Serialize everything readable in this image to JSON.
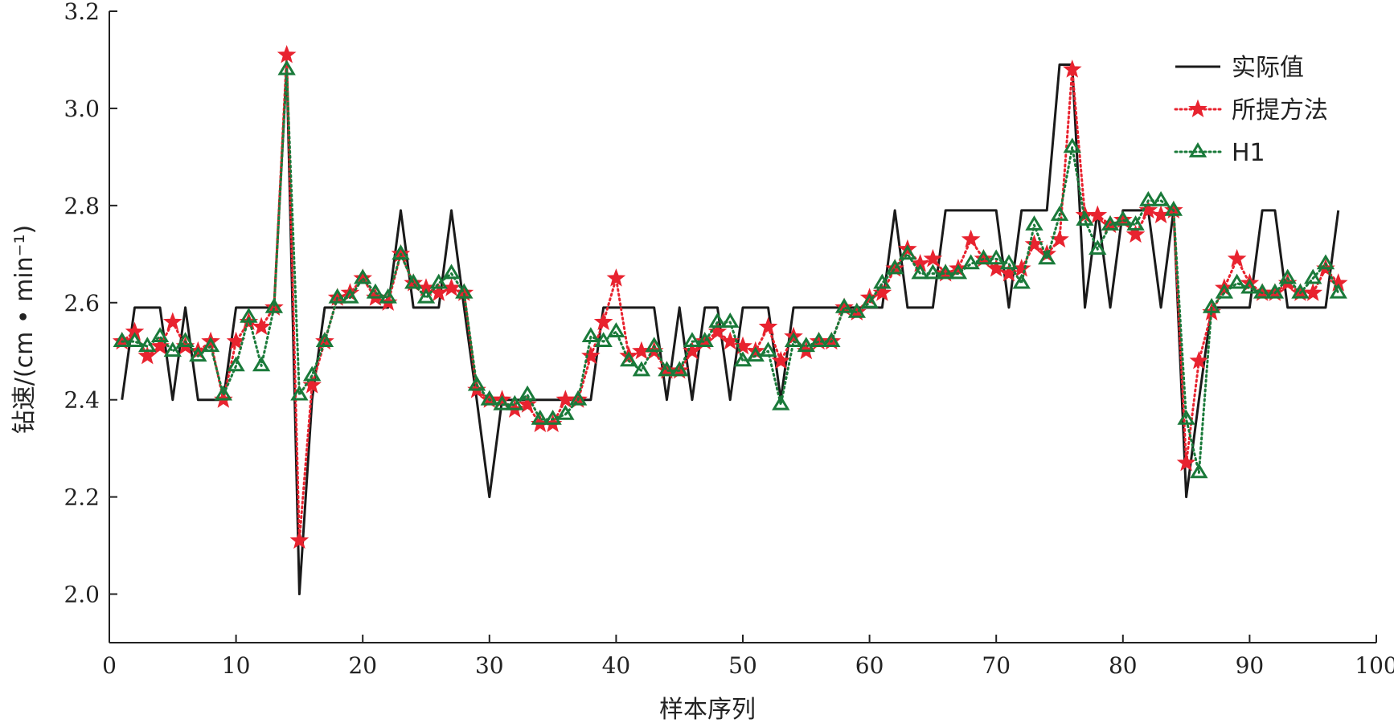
{
  "chart_data": {
    "type": "line",
    "xlabel": "样本序列",
    "ylabel": "钻速/(cm • min⁻¹)",
    "xlim": [
      0,
      100
    ],
    "ylim": [
      1.9,
      3.2
    ],
    "x_ticks": [
      "0",
      "10",
      "20",
      "30",
      "40",
      "50",
      "60",
      "70",
      "80",
      "90",
      "100"
    ],
    "y_ticks": [
      "2.0",
      "2.2",
      "2.4",
      "2.6",
      "2.8",
      "3.0",
      "3.2"
    ],
    "legend_position": "top-right",
    "series": [
      {
        "name": "实际值",
        "color": "#1a1a1a",
        "style": "solid",
        "marker": "none",
        "x": [
          1,
          2,
          3,
          4,
          5,
          6,
          7,
          8,
          9,
          10,
          11,
          12,
          13,
          14,
          15,
          16,
          17,
          18,
          19,
          20,
          21,
          22,
          23,
          24,
          25,
          26,
          27,
          28,
          29,
          30,
          31,
          32,
          33,
          34,
          35,
          36,
          37,
          38,
          39,
          40,
          41,
          42,
          43,
          44,
          45,
          46,
          47,
          48,
          49,
          50,
          51,
          52,
          53,
          54,
          55,
          56,
          57,
          58,
          59,
          60,
          61,
          62,
          63,
          64,
          65,
          66,
          67,
          68,
          69,
          70,
          71,
          72,
          73,
          74,
          75,
          76,
          77,
          78,
          79,
          80,
          81,
          82,
          83,
          84,
          85,
          86,
          87,
          88,
          89,
          90,
          91,
          92,
          93,
          94,
          95,
          96,
          97
        ],
        "values": [
          2.4,
          2.59,
          2.59,
          2.59,
          2.4,
          2.59,
          2.4,
          2.4,
          2.4,
          2.59,
          2.59,
          2.59,
          2.59,
          3.09,
          2.0,
          2.4,
          2.59,
          2.59,
          2.59,
          2.59,
          2.59,
          2.59,
          2.79,
          2.59,
          2.59,
          2.59,
          2.79,
          2.59,
          2.4,
          2.2,
          2.4,
          2.4,
          2.4,
          2.4,
          2.4,
          2.4,
          2.4,
          2.4,
          2.59,
          2.59,
          2.59,
          2.59,
          2.59,
          2.4,
          2.59,
          2.4,
          2.59,
          2.59,
          2.4,
          2.59,
          2.59,
          2.59,
          2.4,
          2.59,
          2.59,
          2.59,
          2.59,
          2.59,
          2.59,
          2.59,
          2.59,
          2.79,
          2.59,
          2.59,
          2.59,
          2.79,
          2.79,
          2.79,
          2.79,
          2.79,
          2.59,
          2.79,
          2.79,
          2.79,
          3.09,
          3.09,
          2.59,
          2.79,
          2.59,
          2.79,
          2.79,
          2.79,
          2.59,
          2.79,
          2.2,
          2.4,
          2.59,
          2.59,
          2.59,
          2.59,
          2.79,
          2.79,
          2.59,
          2.59,
          2.59,
          2.59,
          2.79
        ]
      },
      {
        "name": "所提方法",
        "color": "#e8232f",
        "style": "dotted",
        "marker": "star",
        "x": [
          1,
          2,
          3,
          4,
          5,
          6,
          7,
          8,
          9,
          10,
          11,
          12,
          13,
          14,
          15,
          16,
          17,
          18,
          19,
          20,
          21,
          22,
          23,
          24,
          25,
          26,
          27,
          28,
          29,
          30,
          31,
          32,
          33,
          34,
          35,
          36,
          37,
          38,
          39,
          40,
          41,
          42,
          43,
          44,
          45,
          46,
          47,
          48,
          49,
          50,
          51,
          52,
          53,
          54,
          55,
          56,
          57,
          58,
          59,
          60,
          61,
          62,
          63,
          64,
          65,
          66,
          67,
          68,
          69,
          70,
          71,
          72,
          73,
          74,
          75,
          76,
          77,
          78,
          79,
          80,
          81,
          82,
          83,
          84,
          85,
          86,
          87,
          88,
          89,
          90,
          91,
          92,
          93,
          94,
          95,
          96,
          97
        ],
        "values": [
          2.52,
          2.54,
          2.49,
          2.51,
          2.56,
          2.51,
          2.5,
          2.52,
          2.4,
          2.52,
          2.56,
          2.55,
          2.59,
          3.11,
          2.11,
          2.43,
          2.52,
          2.61,
          2.62,
          2.65,
          2.61,
          2.6,
          2.7,
          2.64,
          2.63,
          2.62,
          2.63,
          2.62,
          2.42,
          2.4,
          2.4,
          2.38,
          2.39,
          2.35,
          2.35,
          2.4,
          2.4,
          2.49,
          2.56,
          2.65,
          2.49,
          2.5,
          2.5,
          2.46,
          2.46,
          2.5,
          2.52,
          2.54,
          2.52,
          2.51,
          2.5,
          2.55,
          2.48,
          2.53,
          2.5,
          2.52,
          2.52,
          2.59,
          2.58,
          2.61,
          2.62,
          2.67,
          2.71,
          2.68,
          2.69,
          2.66,
          2.67,
          2.73,
          2.69,
          2.67,
          2.66,
          2.67,
          2.72,
          2.7,
          2.73,
          3.08,
          2.78,
          2.78,
          2.76,
          2.77,
          2.74,
          2.79,
          2.78,
          2.79,
          2.27,
          2.48,
          2.58,
          2.63,
          2.69,
          2.64,
          2.62,
          2.62,
          2.64,
          2.62,
          2.62,
          2.67,
          2.64
        ]
      },
      {
        "name": "H1",
        "color": "#1a7a3a",
        "style": "dotted",
        "marker": "triangle",
        "x": [
          1,
          2,
          3,
          4,
          5,
          6,
          7,
          8,
          9,
          10,
          11,
          12,
          13,
          14,
          15,
          16,
          17,
          18,
          19,
          20,
          21,
          22,
          23,
          24,
          25,
          26,
          27,
          28,
          29,
          30,
          31,
          32,
          33,
          34,
          35,
          36,
          37,
          38,
          39,
          40,
          41,
          42,
          43,
          44,
          45,
          46,
          47,
          48,
          49,
          50,
          51,
          52,
          53,
          54,
          55,
          56,
          57,
          58,
          59,
          60,
          61,
          62,
          63,
          64,
          65,
          66,
          67,
          68,
          69,
          70,
          71,
          72,
          73,
          74,
          75,
          76,
          77,
          78,
          79,
          80,
          81,
          82,
          83,
          84,
          85,
          86,
          87,
          88,
          89,
          90,
          91,
          92,
          93,
          94,
          95,
          96,
          97
        ],
        "values": [
          2.52,
          2.52,
          2.51,
          2.53,
          2.5,
          2.52,
          2.49,
          2.51,
          2.41,
          2.47,
          2.57,
          2.47,
          2.59,
          3.08,
          2.41,
          2.45,
          2.52,
          2.61,
          2.61,
          2.65,
          2.62,
          2.61,
          2.7,
          2.64,
          2.61,
          2.64,
          2.66,
          2.62,
          2.43,
          2.4,
          2.39,
          2.39,
          2.41,
          2.36,
          2.36,
          2.37,
          2.4,
          2.53,
          2.52,
          2.54,
          2.48,
          2.46,
          2.51,
          2.46,
          2.46,
          2.52,
          2.52,
          2.56,
          2.56,
          2.48,
          2.49,
          2.5,
          2.39,
          2.52,
          2.51,
          2.52,
          2.52,
          2.59,
          2.58,
          2.6,
          2.64,
          2.67,
          2.7,
          2.66,
          2.66,
          2.66,
          2.66,
          2.68,
          2.69,
          2.69,
          2.68,
          2.64,
          2.76,
          2.69,
          2.78,
          2.92,
          2.77,
          2.71,
          2.76,
          2.77,
          2.76,
          2.81,
          2.81,
          2.79,
          2.36,
          2.25,
          2.59,
          2.62,
          2.64,
          2.63,
          2.62,
          2.62,
          2.65,
          2.62,
          2.65,
          2.68,
          2.62
        ]
      }
    ]
  }
}
